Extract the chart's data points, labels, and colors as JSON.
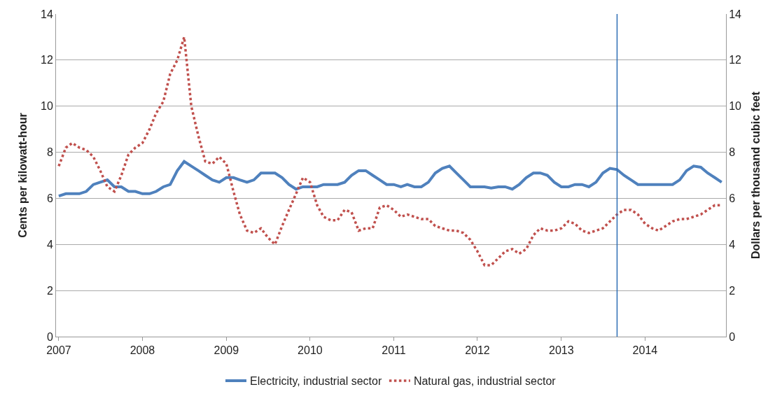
{
  "chart_data": {
    "type": "line",
    "x": [
      "2007-01",
      "2007-02",
      "2007-03",
      "2007-04",
      "2007-05",
      "2007-06",
      "2007-07",
      "2007-08",
      "2007-09",
      "2007-10",
      "2007-11",
      "2007-12",
      "2008-01",
      "2008-02",
      "2008-03",
      "2008-04",
      "2008-05",
      "2008-06",
      "2008-07",
      "2008-08",
      "2008-09",
      "2008-10",
      "2008-11",
      "2008-12",
      "2009-01",
      "2009-02",
      "2009-03",
      "2009-04",
      "2009-05",
      "2009-06",
      "2009-07",
      "2009-08",
      "2009-09",
      "2009-10",
      "2009-11",
      "2009-12",
      "2010-01",
      "2010-02",
      "2010-03",
      "2010-04",
      "2010-05",
      "2010-06",
      "2010-07",
      "2010-08",
      "2010-09",
      "2010-10",
      "2010-11",
      "2010-12",
      "2011-01",
      "2011-02",
      "2011-03",
      "2011-04",
      "2011-05",
      "2011-06",
      "2011-07",
      "2011-08",
      "2011-09",
      "2011-10",
      "2011-11",
      "2011-12",
      "2012-01",
      "2012-02",
      "2012-03",
      "2012-04",
      "2012-05",
      "2012-06",
      "2012-07",
      "2012-08",
      "2012-09",
      "2012-10",
      "2012-11",
      "2012-12",
      "2013-01",
      "2013-02",
      "2013-03",
      "2013-04",
      "2013-05",
      "2013-06",
      "2013-07",
      "2013-08",
      "2013-09",
      "2013-10",
      "2013-11",
      "2013-12",
      "2014-01",
      "2014-02",
      "2014-03",
      "2014-04",
      "2014-05",
      "2014-06",
      "2014-07",
      "2014-08",
      "2014-09",
      "2014-10",
      "2014-11",
      "2014-12"
    ],
    "xlim": [
      "2006-12-20",
      "2014-12-20"
    ],
    "xticks": [
      {
        "value": "2007-01",
        "label": "2007"
      },
      {
        "value": "2008-01",
        "label": "2008"
      },
      {
        "value": "2009-01",
        "label": "2009"
      },
      {
        "value": "2010-01",
        "label": "2010"
      },
      {
        "value": "2011-01",
        "label": "2011"
      },
      {
        "value": "2012-01",
        "label": "2012"
      },
      {
        "value": "2013-01",
        "label": "2013"
      },
      {
        "value": "2014-01",
        "label": "2014"
      }
    ],
    "ylim": [
      0,
      14
    ],
    "yticks": [
      0,
      2,
      4,
      6,
      8,
      10,
      12,
      14
    ],
    "y2lim": [
      0,
      14
    ],
    "y2ticks": [
      0,
      2,
      4,
      6,
      8,
      10,
      12,
      14
    ],
    "ylabel": "Cents per kilowatt-hour",
    "y2label": "Dollars per thousand cubic feet",
    "grid": "y",
    "legend": "bottom",
    "ref_lines": [
      {
        "axis": "x",
        "value": "2013-09",
        "color": "#2e6db4"
      }
    ],
    "series": [
      {
        "name": "Electricity, industrial sector",
        "color": "#4f81bd",
        "line_style": "solid",
        "values": [
          6.1,
          6.2,
          6.2,
          6.2,
          6.3,
          6.6,
          6.7,
          6.8,
          6.5,
          6.5,
          6.3,
          6.3,
          6.2,
          6.2,
          6.3,
          6.5,
          6.6,
          7.2,
          7.6,
          7.4,
          7.2,
          7.0,
          6.8,
          6.7,
          6.9,
          6.9,
          6.8,
          6.7,
          6.8,
          7.1,
          7.1,
          7.1,
          6.9,
          6.6,
          6.4,
          6.5,
          6.5,
          6.5,
          6.6,
          6.6,
          6.6,
          6.7,
          7.0,
          7.2,
          7.2,
          7.0,
          6.8,
          6.6,
          6.6,
          6.5,
          6.6,
          6.5,
          6.5,
          6.7,
          7.1,
          7.3,
          7.4,
          7.1,
          6.8,
          6.5,
          6.5,
          6.5,
          6.45,
          6.5,
          6.5,
          6.4,
          6.6,
          6.9,
          7.1,
          7.1,
          7.0,
          6.7,
          6.5,
          6.5,
          6.6,
          6.6,
          6.5,
          6.7,
          7.1,
          7.3,
          7.25,
          7.0,
          6.8,
          6.6,
          6.6,
          6.6,
          6.6,
          6.6,
          6.6,
          6.8,
          7.2,
          7.4,
          7.35,
          7.1,
          6.9,
          6.7
        ]
      },
      {
        "name": "Natural gas, industrial sector",
        "color": "#c0504d",
        "line_style": "dotted",
        "axis": "y2",
        "values": [
          7.4,
          8.2,
          8.4,
          8.2,
          8.1,
          7.8,
          7.2,
          6.5,
          6.3,
          7.0,
          7.9,
          8.2,
          8.4,
          9.0,
          9.7,
          10.2,
          11.4,
          12.0,
          13.0,
          10.0,
          8.7,
          7.6,
          7.5,
          7.8,
          7.5,
          6.3,
          5.3,
          4.6,
          4.5,
          4.7,
          4.3,
          4.0,
          4.8,
          5.5,
          6.2,
          6.9,
          6.7,
          5.7,
          5.2,
          5.05,
          5.05,
          5.5,
          5.4,
          4.6,
          4.7,
          4.7,
          5.6,
          5.7,
          5.5,
          5.2,
          5.3,
          5.2,
          5.1,
          5.1,
          4.8,
          4.7,
          4.6,
          4.6,
          4.5,
          4.2,
          3.7,
          3.1,
          3.1,
          3.4,
          3.7,
          3.8,
          3.6,
          3.8,
          4.4,
          4.7,
          4.6,
          4.6,
          4.7,
          5.0,
          4.9,
          4.6,
          4.5,
          4.6,
          4.7,
          5.0,
          5.3,
          5.5,
          5.5,
          5.3,
          4.9,
          4.7,
          4.6,
          4.8,
          5.0,
          5.1,
          5.1,
          5.2,
          5.3,
          5.5,
          5.7,
          5.7
        ]
      }
    ]
  }
}
